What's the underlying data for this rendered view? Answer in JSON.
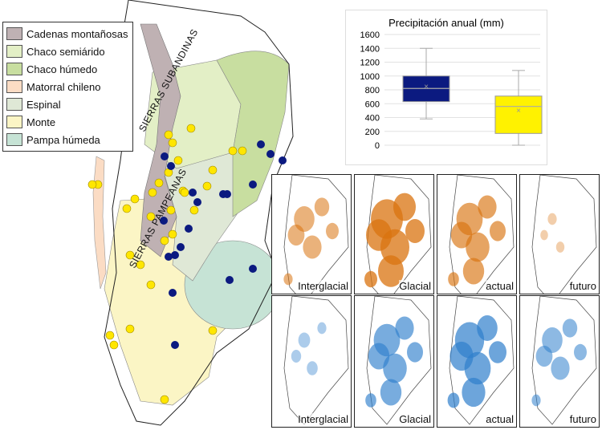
{
  "legend": [
    {
      "label": "Cadenas montañosas",
      "color": "#bfb1b3"
    },
    {
      "label": "Chaco semiárido",
      "color": "#e3efc6"
    },
    {
      "label": "Chaco húmedo",
      "color": "#c8dea0"
    },
    {
      "label": "Matorral chileno",
      "color": "#fbdcc4"
    },
    {
      "label": "Espinal",
      "color": "#dfe8d6"
    },
    {
      "label": "Monte",
      "color": "#fbf5c5"
    },
    {
      "label": "Pampa húmeda",
      "color": "#c6e3d5"
    }
  ],
  "map_labels": {
    "sierras_subandinas": "SIERRAS SUBANDINAS",
    "sierras_pampeanas": "SIERRAS PAMPEANAS"
  },
  "chart_data": {
    "type": "box",
    "title": "Precipitación anual (mm)",
    "ylim": [
      0,
      1600
    ],
    "yticks": [
      0,
      200,
      400,
      600,
      800,
      1000,
      1200,
      1400,
      1600
    ],
    "grid": true,
    "series": [
      {
        "name": "blue",
        "color": "#0b1a80",
        "min": 380,
        "q1": 630,
        "median": 820,
        "mean": 860,
        "q3": 1000,
        "max": 1400
      },
      {
        "name": "yellow",
        "color": "#fff200",
        "min": 0,
        "q1": 170,
        "median": 560,
        "mean": 510,
        "q3": 710,
        "max": 1080
      }
    ]
  },
  "panels": {
    "top": [
      {
        "label": "Interglacial",
        "intensity": 0.6
      },
      {
        "label": "Glacial",
        "intensity": 1.0
      },
      {
        "label": "actual",
        "intensity": 0.8
      },
      {
        "label": "futuro",
        "intensity": 0.2
      }
    ],
    "bottom": [
      {
        "label": "Interglacial",
        "intensity": 0.3
      },
      {
        "label": "Glacial",
        "intensity": 0.8
      },
      {
        "label": "actual",
        "intensity": 0.9
      },
      {
        "label": "futuro",
        "intensity": 0.6
      }
    ],
    "top_color": "#d9730f",
    "bottom_color": "#2f7fcc"
  }
}
